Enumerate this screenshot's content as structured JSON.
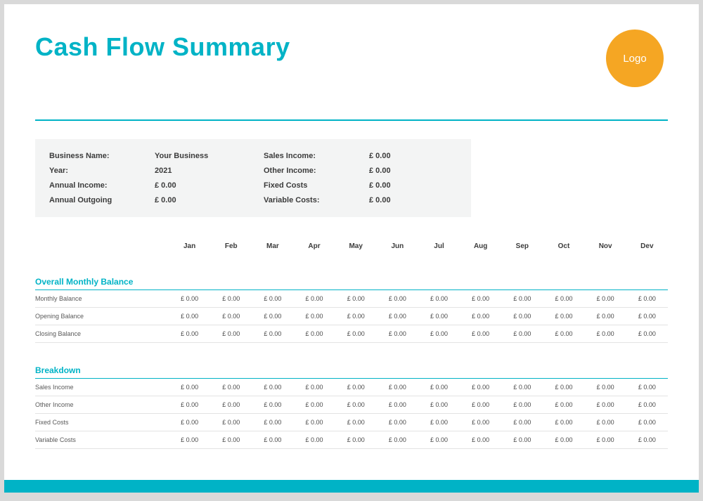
{
  "title": "Cash Flow Summary",
  "logo_text": "Logo",
  "colors": {
    "accent": "#00b3c6",
    "logo_bg": "#f5a623",
    "page_bg": "#ffffff",
    "outer_bg": "#d9d9d9",
    "summary_bg": "#f3f4f4",
    "row_divider": "#e3e3e3",
    "text_dark": "#3b3b3b",
    "text_muted": "#5a5a5a"
  },
  "summary": {
    "left": [
      {
        "label": "Business Name:",
        "value": "Your Business"
      },
      {
        "label": "Year:",
        "value": "2021"
      },
      {
        "label": "Annual Income:",
        "value": "£ 0.00"
      },
      {
        "label": "Annual Outgoing",
        "value": "£ 0.00"
      }
    ],
    "right": [
      {
        "label": "Sales Income:",
        "value": "£ 0.00"
      },
      {
        "label": "Other Income:",
        "value": "£ 0.00"
      },
      {
        "label": "Fixed Costs",
        "value": "£ 0.00"
      },
      {
        "label": "Variable Costs:",
        "value": "£ 0.00"
      }
    ]
  },
  "months": [
    "Jan",
    "Feb",
    "Mar",
    "Apr",
    "May",
    "Jun",
    "Jul",
    "Aug",
    "Sep",
    "Oct",
    "Nov",
    "Dev"
  ],
  "sections": [
    {
      "title": "Overall Monthly Balance",
      "rows": [
        {
          "label": "Monthly Balance",
          "values": [
            "£ 0.00",
            "£ 0.00",
            "£ 0.00",
            "£ 0.00",
            "£ 0.00",
            "£ 0.00",
            "£ 0.00",
            "£ 0.00",
            "£ 0.00",
            "£ 0.00",
            "£ 0.00",
            "£ 0.00"
          ]
        },
        {
          "label": "Opening Balance",
          "values": [
            "£ 0.00",
            "£ 0.00",
            "£ 0.00",
            "£ 0.00",
            "£ 0.00",
            "£ 0.00",
            "£ 0.00",
            "£ 0.00",
            "£ 0.00",
            "£ 0.00",
            "£ 0.00",
            "£ 0.00"
          ]
        },
        {
          "label": "Closing Balance",
          "values": [
            "£ 0.00",
            "£ 0.00",
            "£ 0.00",
            "£ 0.00",
            "£ 0.00",
            "£ 0.00",
            "£ 0.00",
            "£ 0.00",
            "£ 0.00",
            "£ 0.00",
            "£ 0.00",
            "£ 0.00"
          ]
        }
      ]
    },
    {
      "title": "Breakdown",
      "rows": [
        {
          "label": "Sales Income",
          "values": [
            "£ 0.00",
            "£ 0.00",
            "£ 0.00",
            "£ 0.00",
            "£ 0.00",
            "£ 0.00",
            "£ 0.00",
            "£ 0.00",
            "£ 0.00",
            "£ 0.00",
            "£ 0.00",
            "£ 0.00"
          ]
        },
        {
          "label": "Other Income",
          "values": [
            "£ 0.00",
            "£ 0.00",
            "£ 0.00",
            "£ 0.00",
            "£ 0.00",
            "£ 0.00",
            "£ 0.00",
            "£ 0.00",
            "£ 0.00",
            "£ 0.00",
            "£ 0.00",
            "£ 0.00"
          ]
        },
        {
          "label": "Fixed Costs",
          "values": [
            "£ 0.00",
            "£ 0.00",
            "£ 0.00",
            "£ 0.00",
            "£ 0.00",
            "£ 0.00",
            "£ 0.00",
            "£ 0.00",
            "£ 0.00",
            "£ 0.00",
            "£ 0.00",
            "£ 0.00"
          ]
        },
        {
          "label": "Variable Costs",
          "values": [
            "£ 0.00",
            "£ 0.00",
            "£ 0.00",
            "£ 0.00",
            "£ 0.00",
            "£ 0.00",
            "£ 0.00",
            "£ 0.00",
            "£ 0.00",
            "£ 0.00",
            "£ 0.00",
            "£ 0.00"
          ]
        }
      ]
    }
  ]
}
